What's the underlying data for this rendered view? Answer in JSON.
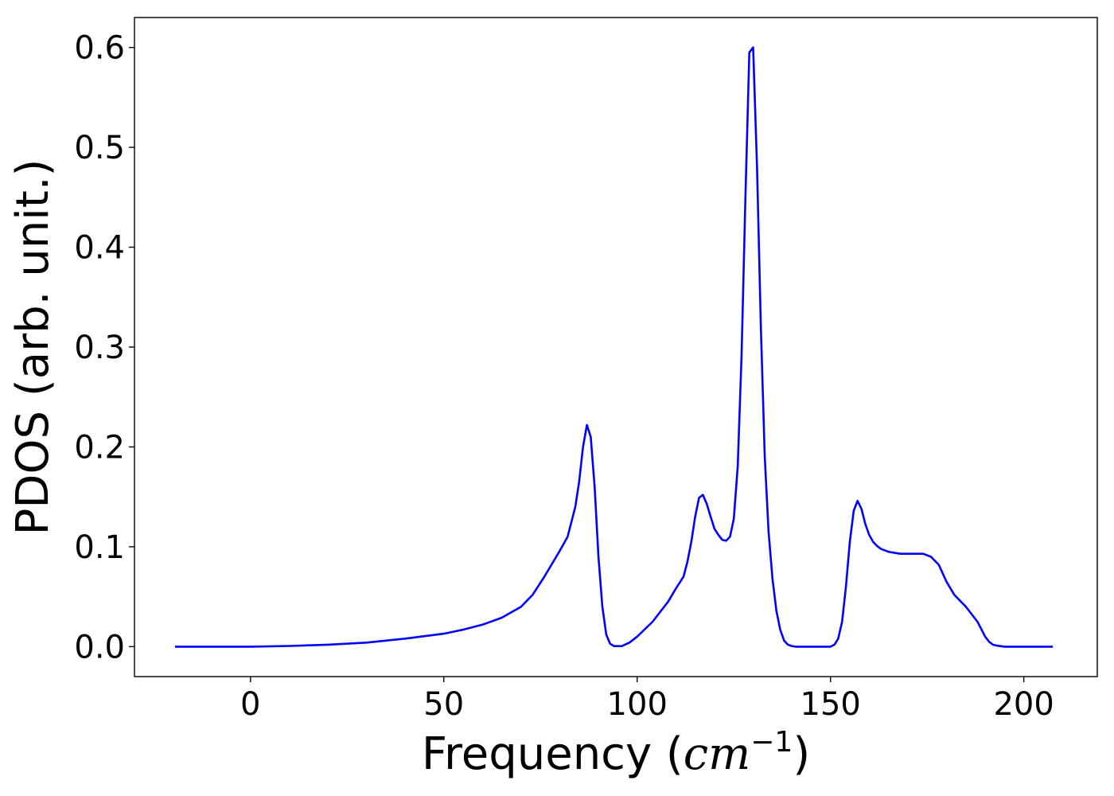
{
  "chart_data": {
    "type": "line",
    "title": "",
    "xlabel": "Frequency (",
    "xlabel_unit": "cm",
    "xlabel_exp": "−1",
    "xlabel_close": ")",
    "ylabel": "PDOS (arb. unit.)",
    "xlim": [
      -30,
      219
    ],
    "ylim": [
      -0.03,
      0.63
    ],
    "xticks": [
      0,
      50,
      100,
      150,
      200
    ],
    "yticks": [
      0.0,
      0.1,
      0.2,
      0.3,
      0.4,
      0.5,
      0.6
    ],
    "ytick_labels": [
      "0.0",
      "0.1",
      "0.2",
      "0.3",
      "0.4",
      "0.5",
      "0.6"
    ],
    "xtick_labels": [
      "0",
      "50",
      "100",
      "150",
      "200"
    ],
    "grid": false,
    "colors": {
      "line": "#0000ff",
      "axes": "#000000"
    },
    "series": [
      {
        "x": [
          -19.5,
          0,
          10,
          20,
          30,
          40,
          50,
          55,
          60,
          65,
          70,
          73,
          76,
          80,
          82,
          84,
          85,
          86,
          87,
          88,
          89,
          90,
          91,
          92,
          93,
          94,
          96,
          98,
          100,
          104,
          108,
          110,
          112,
          113,
          114,
          115,
          116,
          117,
          118,
          119,
          120,
          121,
          122,
          123,
          124,
          125,
          126,
          127,
          128,
          129,
          130,
          131,
          132,
          133,
          134,
          135,
          136,
          137,
          138,
          139,
          140,
          141,
          142,
          143,
          145,
          148,
          150,
          151,
          152,
          153,
          154,
          155,
          156,
          157,
          158,
          159,
          160,
          161,
          162,
          163,
          165,
          168,
          170,
          172,
          174,
          176,
          178,
          180,
          182,
          185,
          188,
          190,
          191,
          192,
          193,
          195,
          200,
          207.5
        ],
        "y": [
          0.0,
          0.0,
          0.0007,
          0.002,
          0.004,
          0.008,
          0.013,
          0.017,
          0.022,
          0.029,
          0.04,
          0.052,
          0.07,
          0.096,
          0.11,
          0.14,
          0.165,
          0.2,
          0.222,
          0.21,
          0.16,
          0.09,
          0.04,
          0.012,
          0.003,
          0.0005,
          0.0005,
          0.004,
          0.01,
          0.025,
          0.045,
          0.058,
          0.07,
          0.085,
          0.105,
          0.13,
          0.149,
          0.152,
          0.143,
          0.13,
          0.118,
          0.112,
          0.107,
          0.106,
          0.11,
          0.128,
          0.18,
          0.29,
          0.45,
          0.595,
          0.6,
          0.48,
          0.32,
          0.19,
          0.115,
          0.068,
          0.036,
          0.017,
          0.006,
          0.002,
          0.0005,
          0.0,
          0.0,
          0.0,
          0.0,
          0.0,
          0.0,
          0.002,
          0.008,
          0.025,
          0.06,
          0.105,
          0.136,
          0.146,
          0.138,
          0.123,
          0.112,
          0.105,
          0.101,
          0.098,
          0.095,
          0.093,
          0.093,
          0.093,
          0.093,
          0.09,
          0.082,
          0.065,
          0.052,
          0.04,
          0.025,
          0.01,
          0.005,
          0.002,
          0.001,
          0.0,
          0.0,
          0.0
        ]
      }
    ]
  }
}
